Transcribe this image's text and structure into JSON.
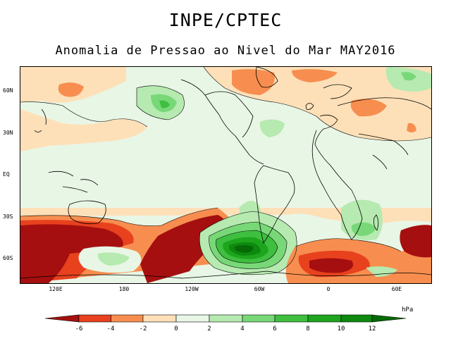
{
  "header": {
    "title": "INPE/CPTEC",
    "subtitle": "Anomalia de Pressao ao Nivel do Mar MAY2016"
  },
  "map": {
    "lat_labels": [
      "60N",
      "30N",
      "EQ",
      "30S",
      "60S"
    ],
    "lon_labels": [
      "120E",
      "180",
      "120W",
      "60W",
      "0",
      "60E"
    ]
  },
  "colorbar": {
    "unit": "hPa",
    "ticks": [
      "-6",
      "-4",
      "-2",
      "0",
      "2",
      "4",
      "6",
      "8",
      "10",
      "12"
    ],
    "colors": {
      "lt_minus6": "#a50f0f",
      "minus6_minus4": "#e8411e",
      "minus4_minus2": "#f78e4f",
      "minus2_0": "#fde0b8",
      "zero_2": "#e8f6e6",
      "two_4": "#b6eab0",
      "four_6": "#78d878",
      "six_8": "#3fbf3f",
      "eight_10": "#1ea51e",
      "ten_12": "#0d8a0d",
      "gt_12": "#056a05"
    }
  }
}
